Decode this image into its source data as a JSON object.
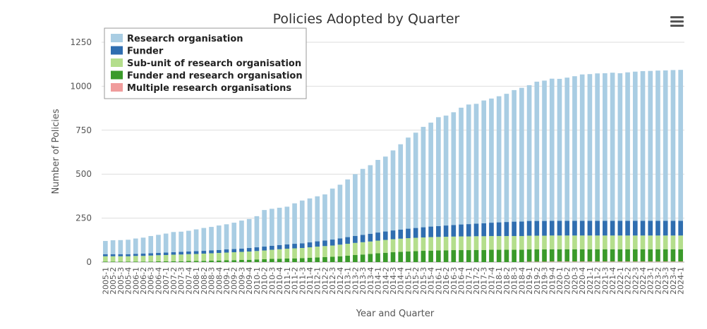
{
  "chart_data": {
    "type": "bar",
    "stacked": true,
    "title": "Policies Adopted by Quarter",
    "xlabel": "Year and Quarter",
    "ylabel": "Number of Policies",
    "ylim": [
      0,
      1250
    ],
    "yticks": [
      0,
      250,
      500,
      750,
      1000,
      1250
    ],
    "legend_position": "top-left",
    "menu_icon": "hamburger-menu-icon",
    "categories": [
      "2005-1",
      "2005-2",
      "2005-3",
      "2005-4",
      "2006-1",
      "2006-2",
      "2006-3",
      "2006-4",
      "2007-1",
      "2007-2",
      "2007-3",
      "2007-4",
      "2008-1",
      "2008-2",
      "2008-3",
      "2008-4",
      "2009-1",
      "2009-2",
      "2009-3",
      "2009-4",
      "2010-1",
      "2010-2",
      "2010-3",
      "2010-4",
      "2011-1",
      "2011-2",
      "2011-3",
      "2011-4",
      "2012-1",
      "2012-2",
      "2012-3",
      "2012-4",
      "2013-1",
      "2013-2",
      "2013-3",
      "2013-4",
      "2014-1",
      "2014-2",
      "2014-3",
      "2014-4",
      "2015-1",
      "2015-2",
      "2015-3",
      "2015-4",
      "2016-1",
      "2016-2",
      "2016-3",
      "2016-4",
      "2017-1",
      "2017-2",
      "2017-3",
      "2017-4",
      "2018-1",
      "2018-2",
      "2018-3",
      "2018-4",
      "2019-1",
      "2019-2",
      "2019-3",
      "2019-4",
      "2020-1",
      "2020-2",
      "2020-3",
      "2020-4",
      "2021-1",
      "2021-2",
      "2021-3",
      "2021-4",
      "2022-1",
      "2022-2",
      "2022-3",
      "2022-4",
      "2023-1",
      "2023-2",
      "2023-3",
      "2023-4",
      "2024-1"
    ],
    "series": [
      {
        "name": "Multiple research organisations",
        "color": "#f09c9c",
        "values": [
          0,
          0,
          0,
          0,
          0,
          0,
          0,
          0,
          0,
          0,
          0,
          0,
          0,
          0,
          0,
          0,
          0,
          0,
          0,
          0,
          0,
          0,
          0,
          0,
          0,
          0,
          0,
          0,
          0,
          0,
          0,
          0,
          0,
          0,
          0,
          0,
          0,
          0,
          0,
          0,
          0,
          0,
          0,
          0,
          0,
          0,
          0,
          0,
          0,
          0,
          0,
          0,
          0,
          0,
          0,
          0,
          2,
          2,
          2,
          3,
          3,
          3,
          3,
          3,
          3,
          3,
          3,
          3,
          3,
          3,
          3,
          3,
          3,
          3,
          3,
          3,
          3
        ]
      },
      {
        "name": "Funder and research organisation",
        "color": "#3a9a2a",
        "values": [
          3,
          3,
          3,
          3,
          3,
          3,
          3,
          4,
          4,
          5,
          5,
          6,
          6,
          7,
          8,
          9,
          10,
          11,
          12,
          13,
          15,
          16,
          18,
          19,
          20,
          21,
          22,
          24,
          26,
          28,
          30,
          33,
          36,
          40,
          43,
          46,
          50,
          53,
          56,
          58,
          60,
          62,
          64,
          65,
          66,
          67,
          68,
          68,
          68,
          69,
          69,
          70,
          70,
          70,
          70,
          70,
          70,
          70,
          70,
          70,
          70,
          70,
          70,
          70,
          70,
          70,
          70,
          70,
          70,
          70,
          70,
          70,
          70,
          70,
          70,
          70,
          70
        ]
      },
      {
        "name": "Sub-unit of research organisation",
        "color": "#b4de8c",
        "values": [
          30,
          30,
          30,
          30,
          32,
          32,
          34,
          35,
          36,
          37,
          38,
          39,
          40,
          41,
          42,
          43,
          44,
          45,
          46,
          47,
          48,
          50,
          52,
          54,
          56,
          57,
          58,
          60,
          62,
          63,
          64,
          66,
          68,
          69,
          70,
          71,
          72,
          73,
          74,
          75,
          76,
          76,
          76,
          77,
          77,
          77,
          77,
          78,
          78,
          78,
          78,
          78,
          78,
          78,
          78,
          78,
          78,
          78,
          78,
          78,
          78,
          78,
          78,
          78,
          78,
          78,
          78,
          78,
          78,
          78,
          78,
          78,
          78,
          78,
          78,
          78,
          78
        ]
      },
      {
        "name": "Funder",
        "color": "#2f6eb0",
        "values": [
          12,
          12,
          12,
          12,
          12,
          13,
          13,
          13,
          14,
          14,
          15,
          15,
          16,
          16,
          17,
          17,
          18,
          18,
          19,
          20,
          21,
          22,
          23,
          24,
          25,
          26,
          27,
          28,
          30,
          32,
          34,
          36,
          38,
          40,
          42,
          44,
          46,
          48,
          50,
          52,
          54,
          56,
          58,
          60,
          62,
          64,
          66,
          68,
          70,
          72,
          74,
          76,
          78,
          80,
          82,
          83,
          84,
          84,
          84,
          84,
          84,
          84,
          84,
          84,
          84,
          84,
          84,
          84,
          84,
          84,
          84,
          84,
          84,
          84,
          84,
          84,
          84
        ]
      },
      {
        "name": "Research organisation",
        "color": "#a9cde3",
        "values": [
          75,
          79,
          80,
          82,
          87,
          91,
          98,
          103,
          108,
          115,
          115,
          118,
          124,
          130,
          133,
          139,
          143,
          150,
          159,
          165,
          177,
          208,
          210,
          212,
          214,
          230,
          243,
          250,
          256,
          262,
          290,
          305,
          328,
          351,
          375,
          390,
          413,
          426,
          455,
          485,
          518,
          542,
          571,
          591,
          619,
          625,
          641,
          664,
          680,
          681,
          698,
          706,
          717,
          729,
          748,
          760,
          772,
          792,
          798,
          808,
          807,
          814,
          822,
          832,
          834,
          838,
          839,
          842,
          839,
          844,
          848,
          851,
          852,
          854,
          855,
          857,
          858
        ]
      }
    ]
  }
}
